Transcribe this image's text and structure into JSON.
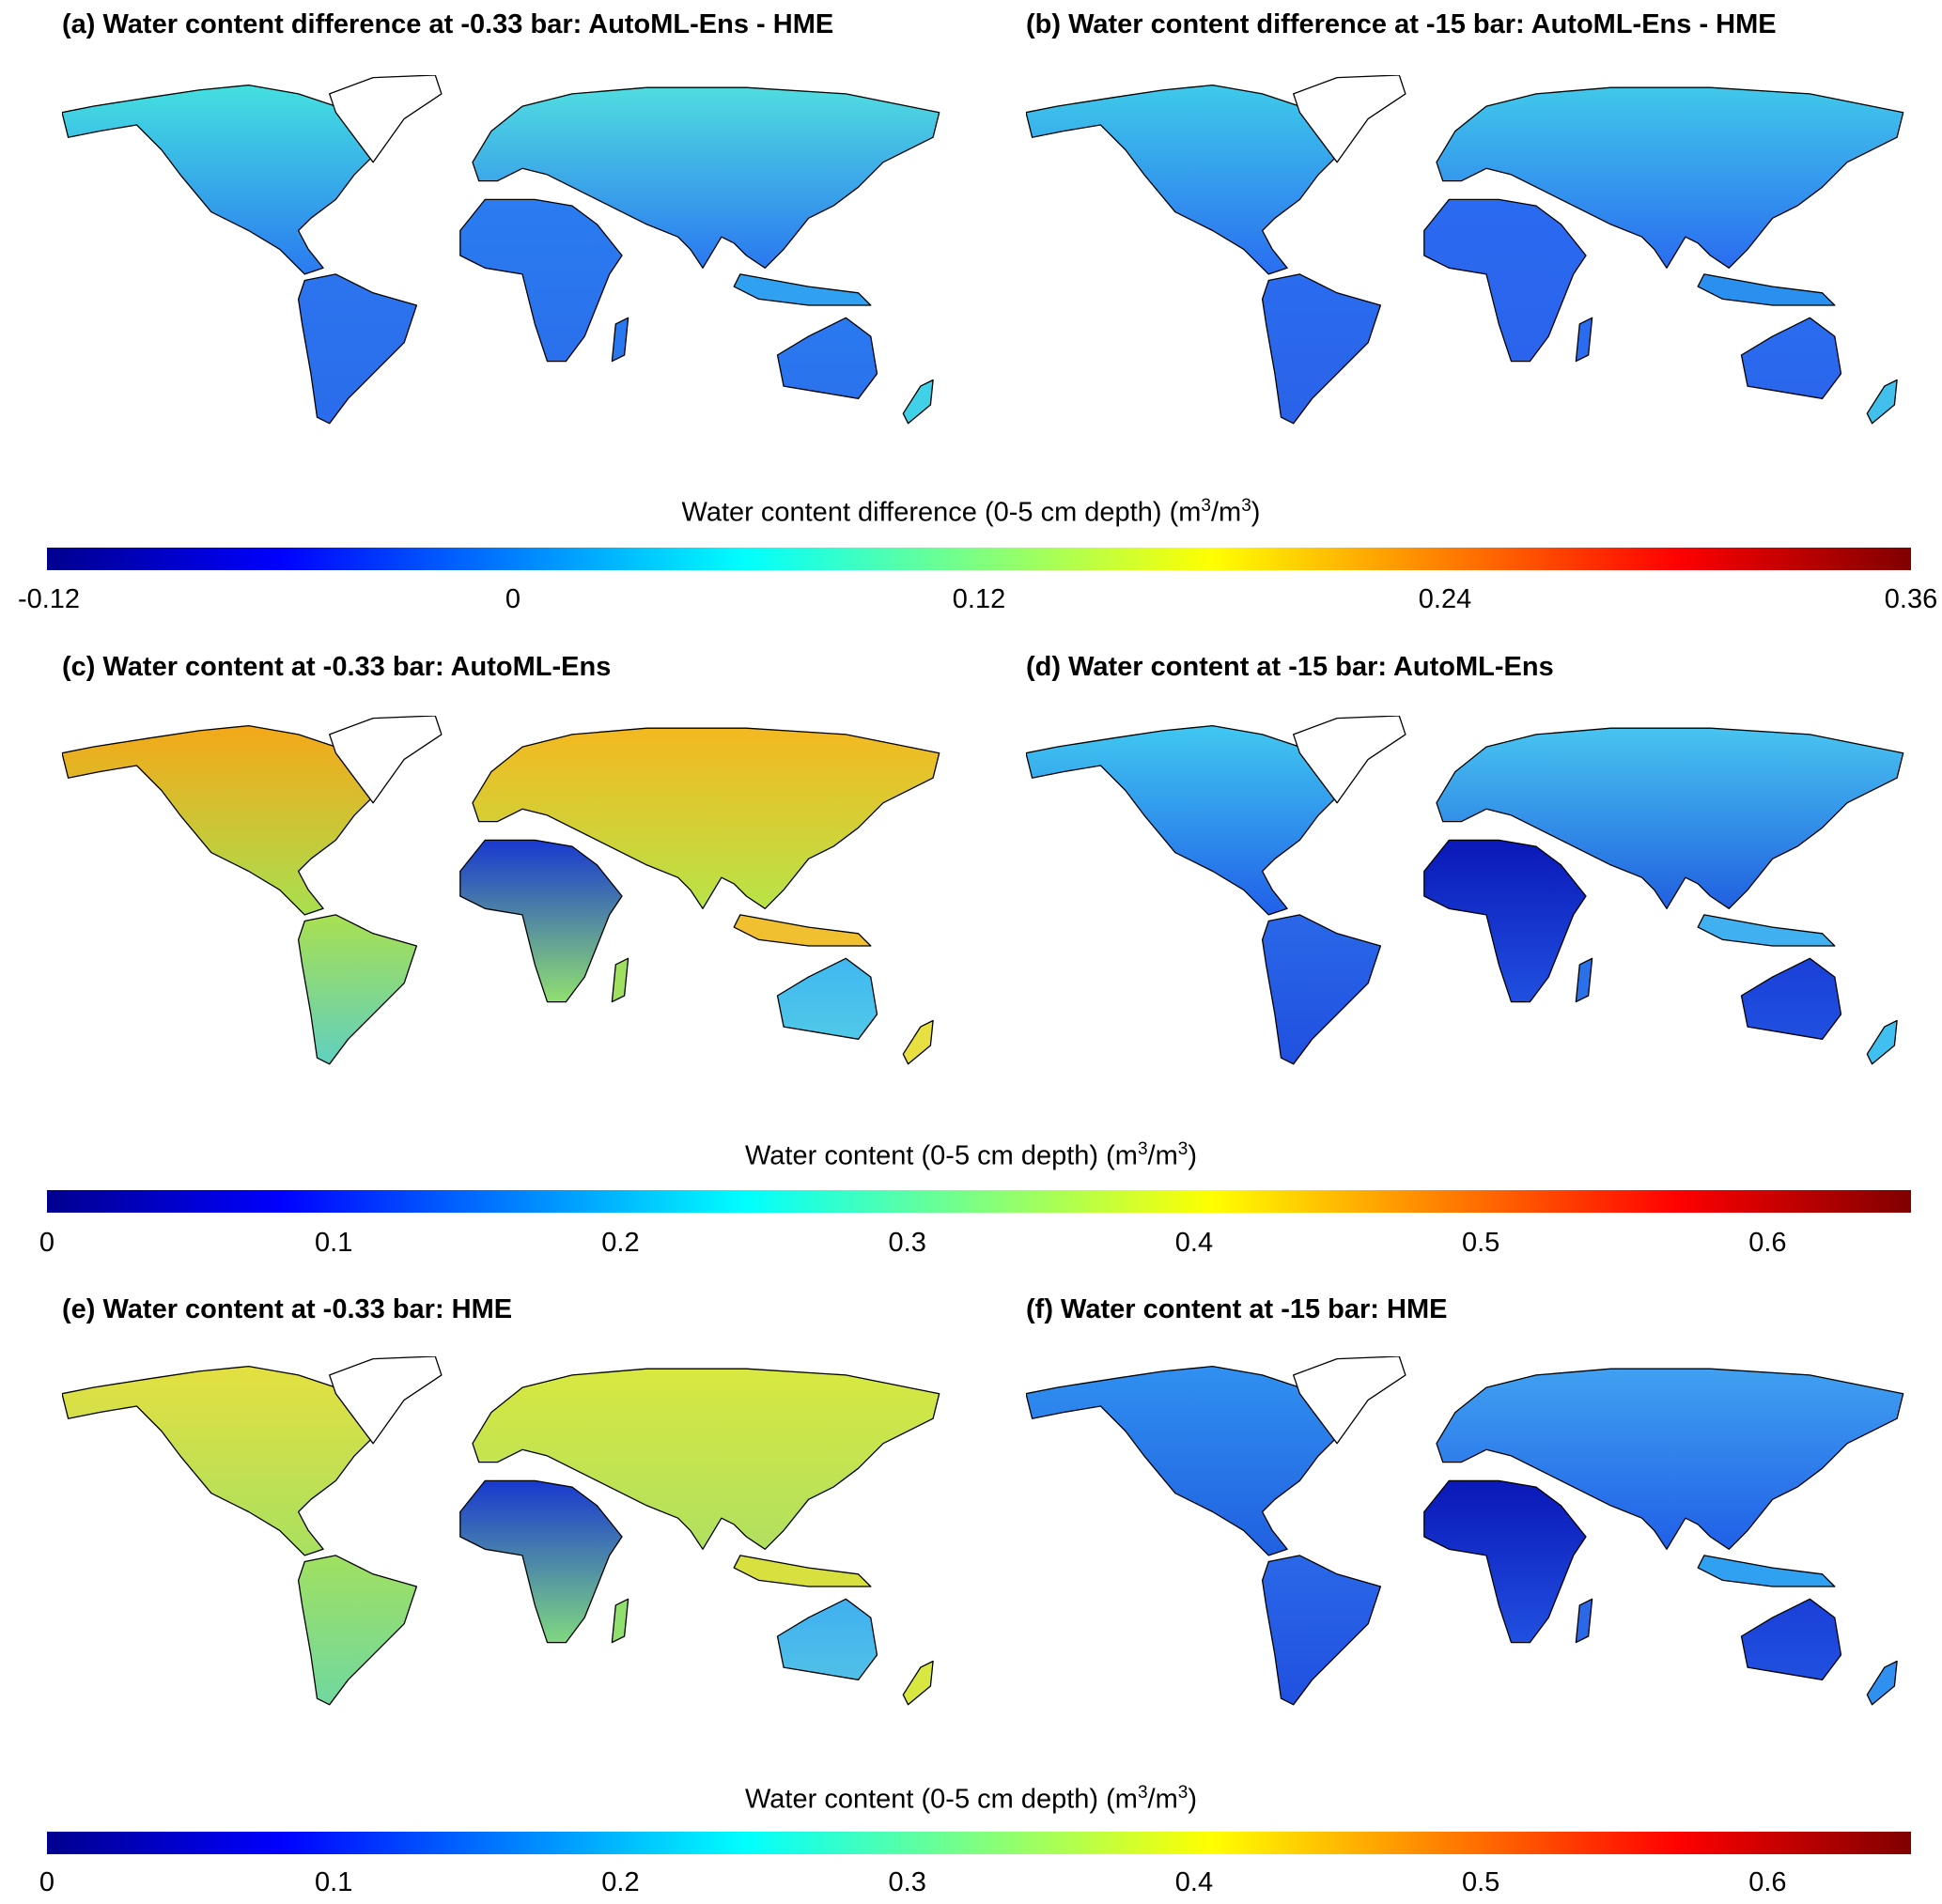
{
  "panels": [
    {
      "id": "a",
      "title": "(a) Water content difference at -0.33 bar: AutoML-Ens - HME"
    },
    {
      "id": "b",
      "title": "(b) Water content difference at -15 bar: AutoML-Ens - HME"
    },
    {
      "id": "c",
      "title": "(c) Water content at -0.33 bar: AutoML-Ens"
    },
    {
      "id": "d",
      "title": "(d) Water content at -15 bar: AutoML-Ens"
    },
    {
      "id": "e",
      "title": "(e) Water content at -0.33 bar: HME"
    },
    {
      "id": "f",
      "title": "(f) Water content at -15 bar: HME"
    }
  ],
  "colorbars": [
    {
      "label_main": "Water content difference (0-5 cm depth) (m",
      "sup1": "3",
      "label_mid": "/m",
      "sup2": "3",
      "label_end": ")",
      "range": [
        -0.12,
        0.36
      ],
      "ticks": [
        "-0.12",
        "0",
        "0.12",
        "0.24",
        "0.36"
      ],
      "tick_values": [
        -0.12,
        0,
        0.12,
        0.24,
        0.36
      ],
      "colormap": "jet"
    },
    {
      "label_main": "Water content (0-5 cm depth) (m",
      "sup1": "3",
      "label_mid": "/m",
      "sup2": "3",
      "label_end": ")",
      "range": [
        0,
        0.65
      ],
      "ticks": [
        "0",
        "0.1",
        "0.2",
        "0.3",
        "0.4",
        "0.5",
        "0.6"
      ],
      "tick_values": [
        0,
        0.1,
        0.2,
        0.3,
        0.4,
        0.5,
        0.6
      ],
      "colormap": "jet"
    },
    {
      "label_main": "Water content (0-5 cm depth) (m",
      "sup1": "3",
      "label_mid": "/m",
      "sup2": "3",
      "label_end": ")",
      "range": [
        0,
        0.65
      ],
      "ticks": [
        "0",
        "0.1",
        "0.2",
        "0.3",
        "0.4",
        "0.5",
        "0.6"
      ],
      "tick_values": [
        0,
        0.1,
        0.2,
        0.3,
        0.4,
        0.5,
        0.6
      ],
      "colormap": "jet"
    }
  ]
}
